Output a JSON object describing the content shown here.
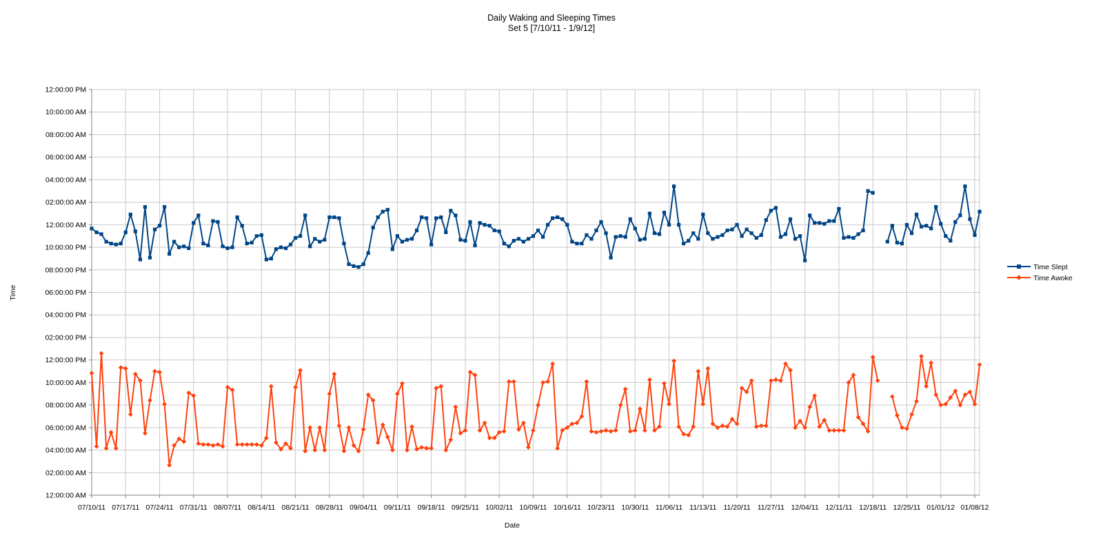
{
  "title": {
    "line1": "Daily Waking and Sleeping Times",
    "line2": "Set 5 [7/10/11 - 1/9/12]"
  },
  "axes": {
    "y_title": "Time",
    "x_title": "Date"
  },
  "legend": [
    {
      "label": "Time Slept",
      "color": "#004586",
      "marker": "square"
    },
    {
      "label": "Time Awoke",
      "color": "#FF420E",
      "marker": "diamond"
    }
  ],
  "colors": {
    "series_slept": "#004586",
    "series_awoke": "#FF420E",
    "gridline": "#C9C9C9",
    "axis": "#808080",
    "text": "#000000",
    "background": "#FFFFFF"
  },
  "chart_data": {
    "type": "line",
    "title": "Daily Waking and Sleeping Times",
    "subtitle": "Set 5 [7/10/11 - 1/9/12]",
    "xlabel": "Date",
    "ylabel": "Time",
    "grid": true,
    "legend_position": "right",
    "n_points": 184,
    "x_tick_every_days": 7,
    "x_tick_labels": [
      "07/10/11",
      "07/17/11",
      "07/24/11",
      "07/31/11",
      "08/07/11",
      "08/14/11",
      "08/21/11",
      "08/28/11",
      "09/04/11",
      "09/11/11",
      "09/18/11",
      "09/25/11",
      "10/02/11",
      "10/09/11",
      "10/16/11",
      "10/23/11",
      "10/30/11",
      "11/06/11",
      "11/13/11",
      "11/20/11",
      "11/27/11",
      "12/04/11",
      "12/11/11",
      "12/18/11",
      "12/25/11",
      "01/01/12",
      "01/08/12"
    ],
    "y_tick_labels": [
      "12:00:00 PM",
      "10:00:00 AM",
      "08:00:00 AM",
      "06:00:00 AM",
      "04:00:00 AM",
      "02:00:00 AM",
      "12:00:00 AM",
      "10:00:00 PM",
      "08:00:00 PM",
      "06:00:00 PM",
      "04:00:00 PM",
      "02:00:00 PM",
      "12:00:00 PM",
      "10:00:00 AM",
      "08:00:00 AM",
      "06:00:00 AM",
      "04:00:00 AM",
      "02:00:00 AM",
      "12:00:00 AM"
    ],
    "y_axis_span_hours": 36,
    "y_axis_note": "bottom gridline = 12:00 AM, rising 2 hours per gridline through noon and midnight to 12:00 PM at top",
    "series": [
      {
        "name": "Time Slept",
        "color": "#004586",
        "marker": "square",
        "values": [
          "11:40 PM",
          "11:20 PM",
          "11:10 PM",
          "10:30 PM",
          "10:20 PM",
          "10:15 PM",
          "10:20 PM",
          "11:20 PM",
          "12:55 AM",
          "11:25 PM",
          "8:55 PM",
          "1:35 AM",
          "9:05 PM",
          "11:35 PM",
          "11:55 PM",
          "1:35 AM",
          "9:25 PM",
          "10:30 PM",
          "10:00 PM",
          "10:05 PM",
          "9:55 PM",
          "12:10 AM",
          "12:50 AM",
          "10:20 PM",
          "10:10 PM",
          "12:20 AM",
          "12:15 AM",
          "10:05 PM",
          "9:55 PM",
          "10:00 PM",
          "12:40 AM",
          "11:55 PM",
          "10:20 PM",
          "10:25 PM",
          "11:00 PM",
          "11:05 PM",
          "8:55 PM",
          "9:00 PM",
          "9:50 PM",
          "10:00 PM",
          "9:55 PM",
          "10:15 PM",
          "10:50 PM",
          "11:00 PM",
          "12:50 AM",
          "10:05 PM",
          "10:45 PM",
          "10:30 PM",
          "10:40 PM",
          "12:40 AM",
          "12:40 AM",
          "12:35 AM",
          "10:20 PM",
          "8:30 PM",
          "8:20 PM",
          "8:15 PM",
          "8:30 PM",
          "9:30 PM",
          "11:45 PM",
          "12:40 AM",
          "1:10 AM",
          "1:20 AM",
          "9:50 PM",
          "11:00 PM",
          "10:30 PM",
          "10:40 PM",
          "10:45 PM",
          "11:30 PM",
          "12:40 AM",
          "12:35 AM",
          "10:15 PM",
          "12:35 AM",
          "12:40 AM",
          "11:20 PM",
          "1:15 AM",
          "12:50 AM",
          "10:40 PM",
          "10:35 PM",
          "12:15 AM",
          "10:10 PM",
          "12:10 AM",
          "12:00 AM",
          "11:55 PM",
          "11:30 PM",
          "11:25 PM",
          "10:20 PM",
          "10:05 PM",
          "10:35 PM",
          "10:45 PM",
          "10:30 PM",
          "10:45 PM",
          "11:00 PM",
          "11:30 PM",
          "10:55 PM",
          "12:00 AM",
          "12:35 AM",
          "12:40 AM",
          "12:30 AM",
          "12:00 AM",
          "10:30 PM",
          "10:20 PM",
          "10:20 PM",
          "11:05 PM",
          "10:45 PM",
          "11:30 PM",
          "12:15 AM",
          "11:15 PM",
          "9:05 PM",
          "10:55 PM",
          "11:00 PM",
          "10:55 PM",
          "12:30 AM",
          "11:40 PM",
          "10:40 PM",
          "10:45 PM",
          "1:00 AM",
          "11:15 PM",
          "11:10 PM",
          "1:05 AM",
          "12:00 AM",
          "3:25 AM",
          "12:00 AM",
          "10:20 PM",
          "10:35 PM",
          "11:15 PM",
          "10:45 PM",
          "12:55 AM",
          "11:15 PM",
          "10:45 PM",
          "10:55 PM",
          "11:05 PM",
          "11:30 PM",
          "11:35 PM",
          "12:00 AM",
          "11:00 PM",
          "11:35 PM",
          "11:15 PM",
          "10:50 PM",
          "11:05 PM",
          "12:25 AM",
          "1:15 AM",
          "1:30 AM",
          "10:55 PM",
          "11:10 PM",
          "12:30 AM",
          "10:45 PM",
          "11:00 PM",
          "8:50 PM",
          "12:50 AM",
          "12:10 AM",
          "12:10 AM",
          "12:05 AM",
          "12:20 AM",
          "12:20 AM",
          "1:25 AM",
          "10:50 PM",
          "10:55 PM",
          "10:50 PM",
          "11:10 PM",
          "11:30 PM",
          "3:00 AM",
          "2:50 AM",
          null,
          null,
          "10:30 PM",
          "11:55 PM",
          "10:25 PM",
          "10:20 PM",
          "12:00 AM",
          "11:15 PM",
          "12:55 AM",
          "11:50 PM",
          "11:55 PM",
          "11:40 PM",
          "1:35 AM",
          "12:05 AM",
          "11:00 PM",
          "10:35 PM",
          "12:15 AM",
          "12:50 AM",
          "3:25 AM",
          "12:30 AM",
          "11:05 PM",
          "1:10 AM"
        ]
      },
      {
        "name": "Time Awoke",
        "color": "#FF420E",
        "marker": "diamond",
        "values": [
          "10:50 AM",
          "4:20 AM",
          "12:35 PM",
          "4:10 AM",
          "5:35 AM",
          "4:10 AM",
          "11:20 AM",
          "11:15 AM",
          "7:10 AM",
          "10:45 AM",
          "10:10 AM",
          "5:30 AM",
          "8:25 AM",
          "11:00 AM",
          "10:55 AM",
          "8:05 AM",
          "2:40 AM",
          "4:25 AM",
          "5:00 AM",
          "4:45 AM",
          "9:05 AM",
          "8:50 AM",
          "4:35 AM",
          "4:30 AM",
          "4:30 AM",
          "4:25 AM",
          "4:30 AM",
          "4:20 AM",
          "9:35 AM",
          "9:20 AM",
          "4:30 AM",
          "4:30 AM",
          "4:30 AM",
          "4:30 AM",
          "4:30 AM",
          "4:25 AM",
          "5:05 AM",
          "9:40 AM",
          "4:40 AM",
          "4:05 AM",
          "4:35 AM",
          "4:10 AM",
          "9:35 AM",
          "11:05 AM",
          "3:55 AM",
          "6:00 AM",
          "4:00 AM",
          "6:00 AM",
          "4:00 AM",
          "9:00 AM",
          "10:45 AM",
          "6:10 AM",
          "3:55 AM",
          "6:00 AM",
          "4:25 AM",
          "3:55 AM",
          "5:50 AM",
          "8:55 AM",
          "8:25 AM",
          "4:40 AM",
          "6:15 AM",
          "5:10 AM",
          "4:00 AM",
          "9:00 AM",
          "9:55 AM",
          "4:00 AM",
          "6:05 AM",
          "4:05 AM",
          "4:15 AM",
          "4:10 AM",
          "4:10 AM",
          "9:30 AM",
          "9:40 AM",
          "4:00 AM",
          "4:55 AM",
          "7:50 AM",
          "5:30 AM",
          "5:45 AM",
          "10:55 AM",
          "10:40 AM",
          "5:45 AM",
          "6:25 AM",
          "5:05 AM",
          "5:05 AM",
          "5:35 AM",
          "5:40 AM",
          "10:05 AM",
          "10:05 AM",
          "5:50 AM",
          "6:25 AM",
          "4:15 AM",
          "5:45 AM",
          "8:00 AM",
          "10:00 AM",
          "10:05 AM",
          "11:40 AM",
          "4:10 AM",
          "5:45 AM",
          "6:00 AM",
          "6:20 AM",
          "6:25 AM",
          "7:00 AM",
          "10:05 AM",
          "5:40 AM",
          "5:35 AM",
          "5:40 AM",
          "5:45 AM",
          "5:40 AM",
          "5:45 AM",
          "8:00 AM",
          "9:25 AM",
          "5:40 AM",
          "5:45 AM",
          "7:40 AM",
          "5:45 AM",
          "10:15 AM",
          "5:45 AM",
          "6:05 AM",
          "9:55 AM",
          "8:05 AM",
          "11:55 AM",
          "6:05 AM",
          "5:25 AM",
          "5:20 AM",
          "6:05 AM",
          "11:00 AM",
          "8:05 AM",
          "11:15 AM",
          "6:20 AM",
          "6:00 AM",
          "6:10 AM",
          "6:05 AM",
          "6:45 AM",
          "6:20 AM",
          "9:30 AM",
          "9:10 AM",
          "10:10 AM",
          "6:05 AM",
          "6:10 AM",
          "6:10 AM",
          "10:10 AM",
          "10:15 AM",
          "10:10 AM",
          "11:40 AM",
          "11:05 AM",
          "6:00 AM",
          "6:35 AM",
          "6:00 AM",
          "7:50 AM",
          "8:50 AM",
          "6:05 AM",
          "6:40 AM",
          "5:45 AM",
          "5:45 AM",
          "5:45 AM",
          "5:45 AM",
          "10:00 AM",
          "10:40 AM",
          "6:55 AM",
          "6:20 AM",
          "5:40 AM",
          "12:15 PM",
          "10:10 AM",
          null,
          null,
          "8:45 AM",
          "7:05 AM",
          "6:00 AM",
          "5:55 AM",
          "7:10 AM",
          "8:20 AM",
          "12:20 PM",
          "9:40 AM",
          "11:45 AM",
          "8:55 AM",
          "8:00 AM",
          "8:05 AM",
          "8:40 AM",
          "9:15 AM",
          "8:00 AM",
          "8:55 AM",
          "9:10 AM",
          "8:05 AM",
          "11:35 AM"
        ]
      }
    ]
  }
}
